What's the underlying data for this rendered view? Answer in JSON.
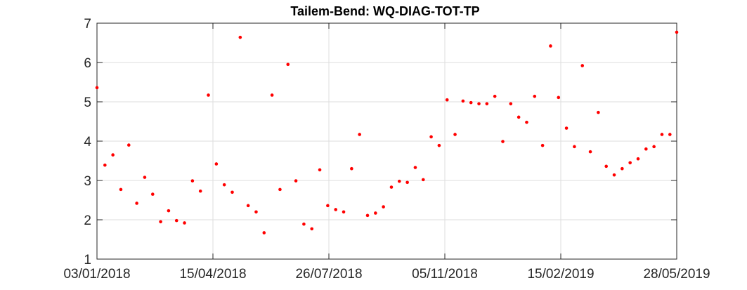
{
  "chart_data": {
    "type": "scatter",
    "title": "Tailem-Bend: WQ-DIAG-TOT-TP",
    "xlabel": "",
    "ylabel": "",
    "xlim": [
      "2018-01-03",
      "2019-05-28"
    ],
    "ylim": [
      1,
      7
    ],
    "x_ticks": [
      "03/01/2018",
      "15/04/2018",
      "26/07/2018",
      "05/11/2018",
      "15/02/2019",
      "28/05/2019"
    ],
    "y_ticks": [
      "1",
      "2",
      "3",
      "4",
      "5",
      "6",
      "7"
    ],
    "grid": true,
    "marker_color": "#ff0000",
    "series": [
      {
        "points": [
          [
            "2018-01-03",
            5.36
          ],
          [
            "2018-01-10",
            3.39
          ],
          [
            "2018-01-17",
            3.65
          ],
          [
            "2018-01-24",
            2.77
          ],
          [
            "2018-01-31",
            3.9
          ],
          [
            "2018-02-07",
            2.42
          ],
          [
            "2018-02-14",
            3.08
          ],
          [
            "2018-02-21",
            2.65
          ],
          [
            "2018-02-28",
            1.95
          ],
          [
            "2018-03-07",
            2.23
          ],
          [
            "2018-03-14",
            1.98
          ],
          [
            "2018-03-21",
            1.92
          ],
          [
            "2018-03-28",
            2.99
          ],
          [
            "2018-04-04",
            2.73
          ],
          [
            "2018-04-11",
            5.17
          ],
          [
            "2018-04-18",
            3.42
          ],
          [
            "2018-04-25",
            2.89
          ],
          [
            "2018-05-02",
            2.7
          ],
          [
            "2018-05-09",
            6.64
          ],
          [
            "2018-05-16",
            2.36
          ],
          [
            "2018-05-23",
            2.2
          ],
          [
            "2018-05-30",
            1.67
          ],
          [
            "2018-06-06",
            5.17
          ],
          [
            "2018-06-13",
            2.77
          ],
          [
            "2018-06-20",
            5.95
          ],
          [
            "2018-06-27",
            2.99
          ],
          [
            "2018-07-04",
            1.89
          ],
          [
            "2018-07-11",
            1.77
          ],
          [
            "2018-07-18",
            3.27
          ],
          [
            "2018-07-25",
            2.36
          ],
          [
            "2018-08-01",
            2.26
          ],
          [
            "2018-08-08",
            2.2
          ],
          [
            "2018-08-15",
            3.3
          ],
          [
            "2018-08-22",
            4.17
          ],
          [
            "2018-08-29",
            2.11
          ],
          [
            "2018-09-05",
            2.17
          ],
          [
            "2018-09-12",
            2.33
          ],
          [
            "2018-09-19",
            2.83
          ],
          [
            "2018-09-26",
            2.98
          ],
          [
            "2018-10-03",
            2.95
          ],
          [
            "2018-10-10",
            3.33
          ],
          [
            "2018-10-17",
            3.02
          ],
          [
            "2018-10-24",
            4.11
          ],
          [
            "2018-10-31",
            3.89
          ],
          [
            "2018-11-07",
            5.05
          ],
          [
            "2018-11-14",
            4.17
          ],
          [
            "2018-11-21",
            5.02
          ],
          [
            "2018-11-28",
            4.98
          ],
          [
            "2018-12-05",
            4.95
          ],
          [
            "2018-12-12",
            4.95
          ],
          [
            "2018-12-19",
            5.14
          ],
          [
            "2018-12-26",
            3.99
          ],
          [
            "2019-01-02",
            4.95
          ],
          [
            "2019-01-09",
            4.61
          ],
          [
            "2019-01-16",
            4.48
          ],
          [
            "2019-01-23",
            5.14
          ],
          [
            "2019-01-30",
            3.89
          ],
          [
            "2019-02-06",
            6.42
          ],
          [
            "2019-02-13",
            5.11
          ],
          [
            "2019-02-20",
            4.33
          ],
          [
            "2019-02-27",
            3.86
          ],
          [
            "2019-03-06",
            5.92
          ],
          [
            "2019-03-13",
            3.73
          ],
          [
            "2019-03-20",
            4.73
          ],
          [
            "2019-03-27",
            3.36
          ],
          [
            "2019-04-03",
            3.14
          ],
          [
            "2019-04-10",
            3.3
          ],
          [
            "2019-04-17",
            3.45
          ],
          [
            "2019-04-24",
            3.55
          ],
          [
            "2019-05-01",
            3.8
          ],
          [
            "2019-05-08",
            3.86
          ],
          [
            "2019-05-15",
            4.17
          ],
          [
            "2019-05-22",
            4.17
          ],
          [
            "2019-05-28",
            6.77
          ]
        ]
      }
    ]
  }
}
